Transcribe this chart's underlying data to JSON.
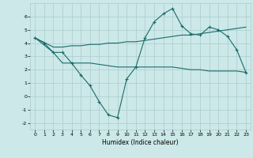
{
  "title": "",
  "xlabel": "Humidex (Indice chaleur)",
  "bg_color": "#cce8e8",
  "grid_color": "#aacccc",
  "line_color": "#1a6b6b",
  "xlim": [
    -0.5,
    23.5
  ],
  "ylim": [
    -2.5,
    7.0
  ],
  "xticks": [
    0,
    1,
    2,
    3,
    4,
    5,
    6,
    7,
    8,
    9,
    10,
    11,
    12,
    13,
    14,
    15,
    16,
    17,
    18,
    19,
    20,
    21,
    22,
    23
  ],
  "yticks": [
    -2,
    -1,
    0,
    1,
    2,
    3,
    4,
    5,
    6
  ],
  "line1_x": [
    0,
    1,
    2,
    3,
    4,
    5,
    6,
    7,
    8,
    9,
    10,
    11,
    12,
    13,
    14,
    15,
    16,
    17,
    18,
    19,
    20,
    21,
    22,
    23
  ],
  "line1_y": [
    4.4,
    4.0,
    3.3,
    3.3,
    2.5,
    1.6,
    0.8,
    -0.4,
    -1.4,
    -1.6,
    1.3,
    2.2,
    4.4,
    5.6,
    6.2,
    6.6,
    5.3,
    4.7,
    4.6,
    5.2,
    5.0,
    4.5,
    3.5,
    1.8
  ],
  "line2_x": [
    0,
    2,
    3,
    4,
    5,
    6,
    7,
    8,
    9,
    10,
    11,
    12,
    13,
    14,
    15,
    16,
    17,
    18,
    19,
    20,
    21,
    22,
    23
  ],
  "line2_y": [
    4.4,
    3.7,
    3.7,
    3.8,
    3.8,
    3.9,
    3.9,
    4.0,
    4.0,
    4.1,
    4.1,
    4.2,
    4.3,
    4.4,
    4.5,
    4.6,
    4.6,
    4.7,
    4.8,
    4.9,
    5.0,
    5.1,
    5.2
  ],
  "line3_x": [
    0,
    2,
    3,
    4,
    5,
    6,
    7,
    8,
    9,
    10,
    11,
    12,
    13,
    14,
    15,
    16,
    17,
    18,
    19,
    20,
    21,
    22,
    23
  ],
  "line3_y": [
    4.4,
    3.3,
    2.5,
    2.5,
    2.5,
    2.5,
    2.4,
    2.3,
    2.2,
    2.2,
    2.2,
    2.2,
    2.2,
    2.2,
    2.2,
    2.1,
    2.0,
    2.0,
    1.9,
    1.9,
    1.9,
    1.9,
    1.8
  ]
}
